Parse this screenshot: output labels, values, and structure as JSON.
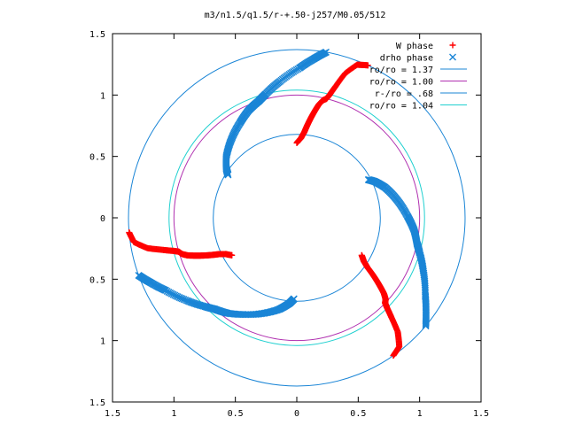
{
  "chart_data": {
    "type": "scatter",
    "title": "m3/n1.5/q1.5/r-+.50-j257/M0.05/512",
    "xlabel": "",
    "ylabel": "",
    "xlim": [
      -1.5,
      1.5
    ],
    "ylim": [
      -1.5,
      1.5
    ],
    "x_ticks": [
      "1.5",
      "1",
      "0.5",
      "0",
      "0.5",
      "1",
      "1.5"
    ],
    "y_ticks": [
      "1.5",
      "1",
      "0.5",
      "0",
      "0.5",
      "1",
      "1.5"
    ],
    "legend_position": "top-right",
    "series": [
      {
        "name": "W phase",
        "marker": "plus",
        "color": "#ff0000",
        "branches": [
          {
            "r": [
              0.61,
              0.65,
              0.7,
              0.76,
              0.82,
              0.88,
              0.94,
              0.98,
              1.0,
              1.04,
              1.12,
              1.24,
              1.34,
              1.37
            ],
            "theta_deg": [
              210,
              207,
              205,
              203.5,
              202,
              200.5,
              199,
              197.5,
              196,
              195,
              193.5,
              191.5,
              188.5,
              185
            ]
          }
        ]
      },
      {
        "name": "drho phase",
        "marker": "cross",
        "color": "#1a85d6",
        "branches": [
          {
            "r": [
              0.66,
              0.7,
              0.76,
              0.83,
              0.9,
              0.96,
              1.0,
              1.04,
              1.12,
              1.22,
              1.3,
              1.37
            ],
            "theta_deg": [
              148,
              145,
              139,
              130,
              121,
              114,
              108,
              104,
              97,
              89,
              84,
              80
            ]
          }
        ]
      }
    ],
    "circles": [
      {
        "label": "ro/ro = 1.37",
        "r": 1.37,
        "color": "#1a85d6"
      },
      {
        "label": "ro/ro = 1.00",
        "r": 1.0,
        "color": "#b030b0"
      },
      {
        "label": "r-/ro = .68",
        "r": 0.68,
        "color": "#1a85d6"
      },
      {
        "label": "ro/ro = 1.04",
        "r": 1.04,
        "color": "#20d0d0"
      }
    ]
  }
}
